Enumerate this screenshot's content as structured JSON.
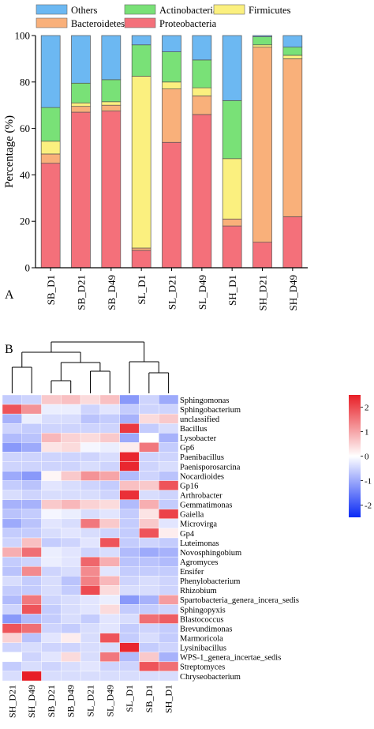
{
  "panels": {
    "a": {
      "label": "A"
    },
    "b": {
      "label": "B"
    }
  },
  "chart_data": [
    {
      "type": "bar",
      "stacked": true,
      "panel": "A",
      "title": "",
      "xlabel": "",
      "ylabel": "Percentage (%)",
      "ylim": [
        0,
        100
      ],
      "yticks": [
        0,
        20,
        40,
        60,
        80,
        100
      ],
      "grid": false,
      "legend_position": "top",
      "categories": [
        "SB_D1",
        "SB_D21",
        "SB_D49",
        "SL_D1",
        "SL_D21",
        "SL_D49",
        "SH_D1",
        "SH_D21",
        "SH_D49"
      ],
      "series": [
        {
          "name": "Proteobacteria",
          "color": "#f4707a",
          "values": [
            45,
            67,
            67.5,
            7.5,
            54,
            66,
            18,
            11,
            22
          ]
        },
        {
          "name": "Bacteroidetes",
          "color": "#f9b07a",
          "values": [
            4,
            2.5,
            2.5,
            1,
            23,
            8,
            3,
            84,
            68
          ]
        },
        {
          "name": "Firmicutes",
          "color": "#fbf07f",
          "values": [
            5.5,
            1.5,
            1.5,
            74,
            3,
            3.5,
            26,
            1,
            1.5
          ]
        },
        {
          "name": "Actinobacteria",
          "color": "#79e177",
          "values": [
            14.5,
            8.5,
            9.5,
            13.5,
            13,
            12,
            25,
            3.5,
            3.5
          ]
        },
        {
          "name": "Others",
          "color": "#6cb8f2",
          "values": [
            31,
            20.5,
            19,
            4,
            7,
            10.5,
            28,
            0.5,
            5
          ]
        }
      ]
    },
    {
      "type": "heatmap",
      "panel": "B",
      "title": "",
      "columns": [
        "SH_D21",
        "SH_D49",
        "SB_D21",
        "SB_D49",
        "SL_D21",
        "SL_D49",
        "SL_D1",
        "SB_D1",
        "SH_D1"
      ],
      "rows": [
        "Sphingomonas",
        "Sphingobacterium",
        "unclassified",
        "Bacillus",
        "Lysobacter",
        "Gp6",
        "Paenibacillus",
        "Paenisporosarcina",
        "Nocardioides",
        "Gp16",
        "Arthrobacter",
        "Gemmatimonas",
        "Gaiella",
        "Microvirga",
        "Gp4",
        "Luteimonas",
        "Novosphingobium",
        "Agromyces",
        "Ensifer",
        "Phenylobacterium",
        "Rhizobium",
        "Spartobacteria_genera_incera_sedis",
        "Sphingopyxis",
        "Blastococcus",
        "Brevundimonas",
        "Marmoricola",
        "Lysinibacillus",
        "WPS-1_genera_incertae_sedis",
        "Streptomyces",
        "Chryseobacterium"
      ],
      "values": [
        [
          -0.6,
          -0.5,
          0.6,
          0.7,
          0.4,
          0.7,
          -1.2,
          -0.5,
          -1.0
        ],
        [
          1.9,
          1.2,
          -0.2,
          -0.2,
          -0.5,
          -0.3,
          -0.6,
          -0.5,
          -0.5
        ],
        [
          -0.9,
          -0.2,
          -0.4,
          -0.4,
          -0.7,
          -0.6,
          -0.9,
          0.4,
          0.6
        ],
        [
          -0.5,
          -0.6,
          -0.5,
          -0.5,
          -0.5,
          -0.5,
          2.2,
          -0.6,
          -0.4
        ],
        [
          -0.8,
          -0.7,
          0.8,
          0.5,
          0.4,
          0.6,
          -1.0,
          0.0,
          -0.9
        ],
        [
          -1.2,
          -1.0,
          0.3,
          0.4,
          -0.1,
          -0.2,
          0.2,
          1.5,
          -0.6
        ],
        [
          -0.5,
          -0.5,
          -0.5,
          -0.5,
          -0.5,
          -0.4,
          2.4,
          -0.5,
          -0.5
        ],
        [
          -0.5,
          -0.5,
          -0.5,
          -0.5,
          -0.4,
          -0.5,
          2.4,
          -0.5,
          -0.4
        ],
        [
          -1.0,
          -1.2,
          0.1,
          0.6,
          1.2,
          1.0,
          -0.8,
          -0.5,
          -0.7
        ],
        [
          -0.6,
          -0.7,
          -0.3,
          -0.4,
          -0.5,
          -0.6,
          0.7,
          0.6,
          1.9
        ],
        [
          -0.4,
          -0.5,
          -0.4,
          -0.4,
          -0.4,
          -0.5,
          2.3,
          -0.4,
          -0.5
        ],
        [
          -0.9,
          -0.9,
          0.6,
          0.8,
          0.5,
          0.4,
          -0.8,
          0.9,
          -0.6
        ],
        [
          -0.7,
          -0.6,
          -0.1,
          -0.2,
          -0.4,
          -0.3,
          -0.6,
          0.3,
          2.1
        ],
        [
          -1.0,
          -0.7,
          -0.3,
          -0.4,
          1.5,
          0.6,
          -0.6,
          0.6,
          -0.3
        ],
        [
          -0.6,
          -0.6,
          -0.4,
          -0.3,
          -0.4,
          -0.5,
          -0.6,
          1.9,
          0.2
        ],
        [
          -0.5,
          0.7,
          -0.6,
          -0.5,
          -0.3,
          1.9,
          -0.6,
          -0.5,
          -0.6
        ],
        [
          0.9,
          1.6,
          -0.2,
          -0.3,
          -0.5,
          -0.4,
          -0.8,
          -1.0,
          -0.9
        ],
        [
          -0.6,
          -0.5,
          -0.2,
          -0.3,
          1.7,
          0.9,
          -0.7,
          -0.7,
          -0.8
        ],
        [
          -0.7,
          1.3,
          -0.5,
          -0.4,
          1.3,
          -0.3,
          -0.6,
          -0.6,
          -0.6
        ],
        [
          -0.4,
          -0.6,
          -0.4,
          -0.7,
          1.4,
          0.8,
          -0.5,
          -0.4,
          -0.5
        ],
        [
          -0.6,
          -0.6,
          -0.4,
          -0.6,
          2.0,
          0.4,
          -0.4,
          -0.4,
          -0.5
        ],
        [
          -0.8,
          1.5,
          -0.5,
          -0.4,
          -0.3,
          -0.2,
          -1.2,
          -0.9,
          1.1
        ],
        [
          -0.5,
          1.9,
          -0.6,
          -0.4,
          -0.3,
          0.4,
          -0.6,
          -0.6,
          -0.5
        ],
        [
          -1.2,
          -0.8,
          -0.6,
          -0.4,
          -0.6,
          -0.3,
          -0.4,
          1.6,
          1.8
        ],
        [
          1.9,
          1.6,
          -0.5,
          -0.6,
          -0.4,
          -0.3,
          -0.6,
          -0.5,
          -0.6
        ],
        [
          0.5,
          -0.7,
          -0.3,
          0.2,
          -0.4,
          1.9,
          -0.6,
          -0.4,
          -0.6
        ],
        [
          -0.5,
          -0.4,
          -0.5,
          -0.5,
          -0.4,
          -0.4,
          2.4,
          -0.6,
          -0.5
        ],
        [
          0.0,
          -0.5,
          -0.3,
          0.4,
          -0.4,
          1.5,
          -0.8,
          0.6,
          -0.9
        ],
        [
          -0.6,
          -0.4,
          -0.5,
          -0.4,
          -0.3,
          -0.5,
          -0.5,
          1.9,
          1.6
        ],
        [
          -0.4,
          2.5,
          -0.4,
          -0.4,
          -0.4,
          -0.4,
          -0.4,
          -0.4,
          -0.4
        ]
      ],
      "colorbar": {
        "range": [
          -2.5,
          2.5
        ],
        "ticks": [
          -2,
          -1,
          0,
          1,
          2
        ],
        "colors": [
          "#0a2af5",
          "#ffffff",
          "#e81e26"
        ]
      }
    }
  ]
}
